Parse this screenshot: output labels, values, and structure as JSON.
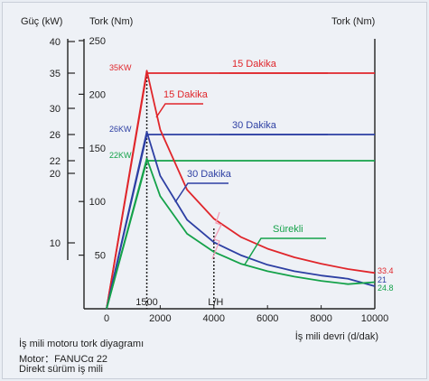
{
  "chart_data": {
    "type": "line",
    "x_label": "İş mili devri (d/dak)",
    "x_range": [
      0,
      10000
    ],
    "x_ticks": [
      {
        "value": 0,
        "label": "0"
      },
      {
        "value": 2000,
        "label": "2000"
      },
      {
        "value": 4000,
        "label": "4000"
      },
      {
        "value": 6000,
        "label": "6000"
      },
      {
        "value": 8000,
        "label": "8000"
      },
      {
        "value": 10000,
        "label": "10000"
      }
    ],
    "x_markers": [
      {
        "value": 1500,
        "label": "1500"
      },
      {
        "value": 4000,
        "label": "L/H"
      }
    ],
    "power_axis": {
      "label": "Güç (kW)",
      "ticks": [
        {
          "value": 40,
          "label": "40"
        },
        {
          "value": 35,
          "label": "35"
        },
        {
          "value": 30,
          "label": "30"
        },
        {
          "value": 26,
          "label": "26"
        },
        {
          "value": 22,
          "label": "22"
        },
        {
          "value": 20,
          "label": "20"
        },
        {
          "value": 10,
          "label": "10"
        }
      ]
    },
    "torque_axis_left": {
      "label": "Tork (Nm)",
      "range": [
        0,
        250
      ],
      "ticks": [
        {
          "value": 250,
          "label": "250"
        },
        {
          "value": 200,
          "label": "200"
        },
        {
          "value": 150,
          "label": "150"
        },
        {
          "value": 100,
          "label": "100"
        },
        {
          "value": 50,
          "label": "50"
        }
      ]
    },
    "torque_axis_right": {
      "label": "Tork (Nm)"
    },
    "power_curves": [
      {
        "label": "15 Dakika",
        "color": "#e0262b",
        "value": 35,
        "point_label": "35KW",
        "x": [
          0,
          1500,
          10000
        ],
        "y": [
          0,
          35,
          35
        ]
      },
      {
        "label": "30 Dakika",
        "color": "#2d3fa3",
        "value": 26,
        "point_label": "26KW",
        "x": [
          0,
          1500,
          10000
        ],
        "y": [
          0,
          26,
          26
        ]
      },
      {
        "label": "",
        "color": "#15a24a",
        "value": 22,
        "point_label": "22KW",
        "x": [
          0,
          1500,
          10000
        ],
        "y": [
          0,
          22,
          22
        ]
      }
    ],
    "torque_curves": [
      {
        "label": "15 Dakika",
        "color": "#e0262b",
        "x": [
          0,
          1500,
          2000,
          3000,
          4000,
          5000,
          6000,
          7000,
          8000,
          9000,
          10000
        ],
        "y": [
          0,
          222,
          167,
          111,
          84,
          67,
          56,
          48,
          42,
          37,
          33.4
        ],
        "end_value": "33.4"
      },
      {
        "label": "30 Dakika",
        "color": "#2d3fa3",
        "x": [
          0,
          1500,
          2000,
          3000,
          4000,
          5000,
          6000,
          7000,
          8000,
          9000,
          10000
        ],
        "y": [
          0,
          165,
          124,
          83,
          62,
          50,
          41,
          35,
          31,
          28,
          21
        ],
        "end_value": "21"
      },
      {
        "label": "Sürekli",
        "color": "#15a24a",
        "x": [
          0,
          1500,
          2000,
          3000,
          4000,
          5000,
          6000,
          7000,
          8000,
          9000,
          10000
        ],
        "y": [
          0,
          140,
          105,
          70,
          53,
          42,
          35,
          30,
          26,
          23,
          24.8
        ],
        "end_value": "24.8"
      }
    ]
  },
  "caption": {
    "line1": "İş mili motoru tork diyagramı",
    "line2": "Motor：FANUCα 22",
    "line3": "Direkt sürüm iş mili"
  }
}
